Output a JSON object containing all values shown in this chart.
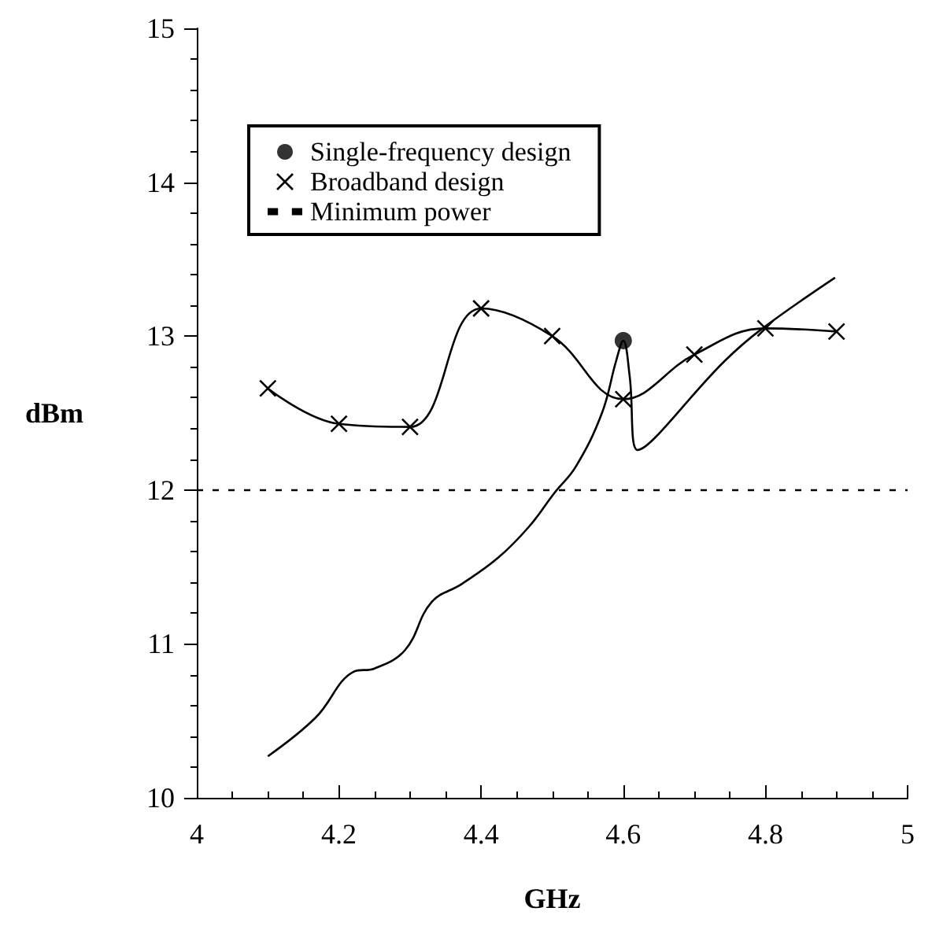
{
  "chart_data": {
    "type": "line",
    "xlabel": "GHz",
    "ylabel": "dBm",
    "xlim": [
      4,
      5
    ],
    "ylim": [
      10,
      15
    ],
    "xticks": [
      4,
      4.2,
      4.4,
      4.6,
      4.8,
      5
    ],
    "yticks": [
      10,
      11,
      12,
      13,
      14,
      15
    ],
    "grid": false,
    "legend": "top left",
    "series": [
      {
        "color": "#000000",
        "marker": "none",
        "x": [
          4.1,
          4.167,
          4.221,
          4.25,
          4.293,
          4.33,
          4.373,
          4.424,
          4.467,
          4.503,
          4.533,
          4.57,
          4.59,
          4.6,
          4.609,
          4.62,
          4.743,
          4.793,
          4.898
        ],
        "values": [
          10.27,
          10.52,
          10.82,
          10.84,
          10.96,
          11.27,
          11.39,
          11.56,
          11.76,
          11.98,
          12.15,
          12.5,
          12.84,
          12.97,
          12.74,
          12.26,
          12.84,
          13.04,
          13.38
        ]
      },
      {
        "type": "scatter",
        "name": "Single-frequency design",
        "color": "#000000",
        "marker": "circle",
        "x": [
          4.6
        ],
        "values": [
          12.97
        ]
      },
      {
        "name": "Broadband design",
        "color": "#000000",
        "marker": "cross",
        "x": [
          4.1,
          4.2,
          4.3,
          4.4,
          4.5,
          4.6,
          4.7,
          4.8,
          4.9
        ],
        "values": [
          12.66,
          12.43,
          12.41,
          13.18,
          13.0,
          12.59,
          12.88,
          13.05,
          13.03
        ]
      }
    ],
    "ref_lines": [
      {
        "axis": "y",
        "value": 12,
        "label": "Minimum power",
        "color": "#000000",
        "line_style": "dashed"
      }
    ]
  }
}
